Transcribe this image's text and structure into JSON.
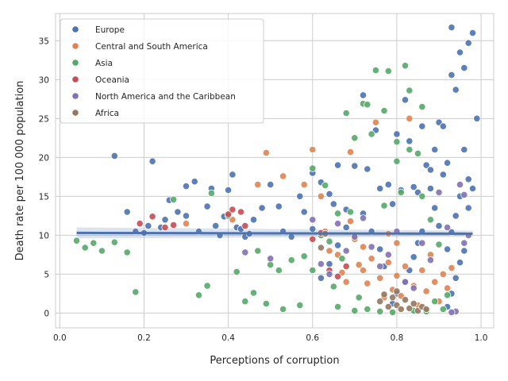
{
  "chart_data": {
    "type": "scatter",
    "xlabel": "Perceptions of corruption",
    "ylabel": "Death rate per 100 000 population",
    "xlim": [
      -0.01,
      1.03
    ],
    "ylim": [
      -1.9,
      38.5
    ],
    "xticks": [
      0.0,
      0.2,
      0.4,
      0.6,
      0.8,
      1.0
    ],
    "xtick_labels": [
      "0.0",
      "0.2",
      "0.4",
      "0.6",
      "0.8",
      "1.0"
    ],
    "yticks": [
      0,
      5,
      10,
      15,
      20,
      25,
      30,
      35
    ],
    "ytick_labels": [
      "0",
      "5",
      "10",
      "15",
      "20",
      "25",
      "30",
      "35"
    ],
    "grid": true,
    "legend_position": "top-left",
    "regression": {
      "x_range": [
        0.04,
        0.98
      ],
      "y_start": 10.3,
      "y_end": 10.2,
      "ci_start": [
        9.6,
        11.0
      ],
      "ci_end": [
        9.8,
        10.6
      ],
      "color": "#4c72b0"
    },
    "series": [
      {
        "name": "Europe",
        "color": "#4c72b0",
        "points": [
          [
            0.13,
            20.2
          ],
          [
            0.22,
            19.5
          ],
          [
            0.16,
            13.0
          ],
          [
            0.18,
            10.5
          ],
          [
            0.2,
            10.3
          ],
          [
            0.21,
            11.2
          ],
          [
            0.24,
            11.0
          ],
          [
            0.25,
            12.0
          ],
          [
            0.26,
            14.5
          ],
          [
            0.28,
            13.0
          ],
          [
            0.3,
            12.5
          ],
          [
            0.3,
            16.3
          ],
          [
            0.32,
            16.9
          ],
          [
            0.33,
            10.5
          ],
          [
            0.35,
            13.7
          ],
          [
            0.36,
            16.0
          ],
          [
            0.37,
            11.2
          ],
          [
            0.38,
            10.0
          ],
          [
            0.39,
            12.4
          ],
          [
            0.4,
            15.8
          ],
          [
            0.41,
            17.8
          ],
          [
            0.42,
            11.0
          ],
          [
            0.43,
            10.8
          ],
          [
            0.44,
            9.8
          ],
          [
            0.45,
            10.2
          ],
          [
            0.46,
            12.0
          ],
          [
            0.48,
            13.5
          ],
          [
            0.5,
            16.5
          ],
          [
            0.52,
            13.7
          ],
          [
            0.53,
            10.5
          ],
          [
            0.55,
            9.8
          ],
          [
            0.57,
            15.0
          ],
          [
            0.58,
            13.0
          ],
          [
            0.6,
            18.0
          ],
          [
            0.62,
            16.8
          ],
          [
            0.64,
            15.3
          ],
          [
            0.65,
            14.0
          ],
          [
            0.66,
            19.0
          ],
          [
            0.68,
            13.3
          ],
          [
            0.7,
            18.9
          ],
          [
            0.72,
            28.0
          ],
          [
            0.73,
            18.5
          ],
          [
            0.75,
            23.5
          ],
          [
            0.76,
            16.0
          ],
          [
            0.78,
            16.5
          ],
          [
            0.79,
            14.0
          ],
          [
            0.8,
            23.0
          ],
          [
            0.81,
            15.8
          ],
          [
            0.82,
            27.4
          ],
          [
            0.83,
            22.1
          ],
          [
            0.84,
            16.2
          ],
          [
            0.85,
            15.5
          ],
          [
            0.86,
            24.0
          ],
          [
            0.87,
            19.0
          ],
          [
            0.88,
            18.4
          ],
          [
            0.89,
            21.0
          ],
          [
            0.9,
            24.5
          ],
          [
            0.91,
            24.0
          ],
          [
            0.92,
            19.3
          ],
          [
            0.93,
            30.6
          ],
          [
            0.93,
            36.7
          ],
          [
            0.94,
            28.7
          ],
          [
            0.95,
            33.5
          ],
          [
            0.96,
            31.5
          ],
          [
            0.97,
            34.7
          ],
          [
            0.98,
            36.0
          ],
          [
            0.96,
            21.0
          ],
          [
            0.97,
            17.2
          ],
          [
            0.95,
            15.0
          ],
          [
            0.94,
            12.5
          ],
          [
            0.93,
            10.4
          ],
          [
            0.92,
            8.2
          ],
          [
            0.9,
            11.2
          ],
          [
            0.89,
            13.5
          ],
          [
            0.88,
            16.0
          ],
          [
            0.91,
            17.8
          ],
          [
            0.86,
            10.5
          ],
          [
            0.85,
            9.0
          ],
          [
            0.84,
            7.2
          ],
          [
            0.83,
            5.5
          ],
          [
            0.82,
            4.0
          ],
          [
            0.8,
            2.5
          ],
          [
            0.79,
            1.2
          ],
          [
            0.77,
            6.0
          ],
          [
            0.76,
            8.2
          ],
          [
            0.74,
            10.5
          ],
          [
            0.72,
            12.8
          ],
          [
            0.7,
            9.8
          ],
          [
            0.68,
            11.0
          ],
          [
            0.66,
            8.7
          ],
          [
            0.64,
            6.3
          ],
          [
            0.62,
            4.5
          ],
          [
            0.6,
            10.8
          ],
          [
            0.99,
            25.0
          ],
          [
            0.98,
            16.0
          ],
          [
            0.97,
            13.5
          ],
          [
            0.96,
            8.0
          ],
          [
            0.95,
            6.5
          ],
          [
            0.94,
            4.5
          ],
          [
            0.93,
            2.5
          ],
          [
            0.92,
            0.8
          ]
        ]
      },
      {
        "name": "Central and South America",
        "color": "#dd8452",
        "points": [
          [
            0.3,
            11.5
          ],
          [
            0.41,
            12.0
          ],
          [
            0.47,
            16.5
          ],
          [
            0.49,
            20.6
          ],
          [
            0.53,
            17.6
          ],
          [
            0.58,
            16.5
          ],
          [
            0.6,
            21.0
          ],
          [
            0.62,
            15.0
          ],
          [
            0.63,
            10.5
          ],
          [
            0.64,
            8.0
          ],
          [
            0.66,
            7.5
          ],
          [
            0.67,
            5.2
          ],
          [
            0.68,
            4.0
          ],
          [
            0.69,
            11.8
          ],
          [
            0.7,
            9.5
          ],
          [
            0.71,
            6.2
          ],
          [
            0.72,
            5.5
          ],
          [
            0.73,
            3.8
          ],
          [
            0.74,
            7.0
          ],
          [
            0.75,
            24.5
          ],
          [
            0.76,
            4.5
          ],
          [
            0.77,
            2.0
          ],
          [
            0.78,
            6.5
          ],
          [
            0.79,
            3.0
          ],
          [
            0.8,
            4.8
          ],
          [
            0.81,
            2.2
          ],
          [
            0.82,
            6.0
          ],
          [
            0.83,
            25.0
          ],
          [
            0.84,
            3.5
          ],
          [
            0.85,
            1.0
          ],
          [
            0.86,
            5.5
          ],
          [
            0.87,
            2.8
          ],
          [
            0.88,
            7.5
          ],
          [
            0.89,
            4.0
          ],
          [
            0.9,
            1.5
          ],
          [
            0.91,
            5.0
          ],
          [
            0.92,
            3.2
          ],
          [
            0.93,
            5.8
          ],
          [
            0.72,
            8.5
          ],
          [
            0.69,
            20.7
          ],
          [
            0.8,
            9.0
          ],
          [
            0.78,
            10.2
          ]
        ]
      },
      {
        "name": "Asia",
        "color": "#55a868",
        "points": [
          [
            0.04,
            9.3
          ],
          [
            0.06,
            8.4
          ],
          [
            0.08,
            9.0
          ],
          [
            0.1,
            8.0
          ],
          [
            0.13,
            9.1
          ],
          [
            0.16,
            7.8
          ],
          [
            0.18,
            2.7
          ],
          [
            0.27,
            14.6
          ],
          [
            0.33,
            2.3
          ],
          [
            0.35,
            3.5
          ],
          [
            0.36,
            15.4
          ],
          [
            0.4,
            12.5
          ],
          [
            0.42,
            5.3
          ],
          [
            0.44,
            1.5
          ],
          [
            0.46,
            2.6
          ],
          [
            0.47,
            8.0
          ],
          [
            0.49,
            1.2
          ],
          [
            0.5,
            6.2
          ],
          [
            0.52,
            5.5
          ],
          [
            0.53,
            0.5
          ],
          [
            0.55,
            6.8
          ],
          [
            0.57,
            1.0
          ],
          [
            0.58,
            7.3
          ],
          [
            0.6,
            5.5
          ],
          [
            0.62,
            10.0
          ],
          [
            0.64,
            9.2
          ],
          [
            0.65,
            3.4
          ],
          [
            0.66,
            0.8
          ],
          [
            0.67,
            7.0
          ],
          [
            0.68,
            25.7
          ],
          [
            0.69,
            13.0
          ],
          [
            0.7,
            0.3
          ],
          [
            0.71,
            2.0
          ],
          [
            0.72,
            26.9
          ],
          [
            0.73,
            0.5
          ],
          [
            0.74,
            23.0
          ],
          [
            0.75,
            31.2
          ],
          [
            0.76,
            0.2
          ],
          [
            0.77,
            13.8
          ],
          [
            0.78,
            31.1
          ],
          [
            0.79,
            0.1
          ],
          [
            0.8,
            22.0
          ],
          [
            0.81,
            15.5
          ],
          [
            0.82,
            31.8
          ],
          [
            0.83,
            28.6
          ],
          [
            0.84,
            0.3
          ],
          [
            0.85,
            20.5
          ],
          [
            0.86,
            26.5
          ],
          [
            0.87,
            0.2
          ],
          [
            0.88,
            12.0
          ],
          [
            0.89,
            1.5
          ],
          [
            0.9,
            8.8
          ],
          [
            0.91,
            0.5
          ],
          [
            0.92,
            2.3
          ],
          [
            0.6,
            18.6
          ],
          [
            0.63,
            16.4
          ],
          [
            0.66,
            12.8
          ],
          [
            0.7,
            22.5
          ],
          [
            0.73,
            26.8
          ],
          [
            0.77,
            26.0
          ],
          [
            0.8,
            19.5
          ],
          [
            0.83,
            21.0
          ],
          [
            0.86,
            15.0
          ]
        ]
      },
      {
        "name": "Oceania",
        "color": "#c44e52",
        "points": [
          [
            0.19,
            11.5
          ],
          [
            0.22,
            12.4
          ],
          [
            0.25,
            11.0
          ],
          [
            0.27,
            11.3
          ],
          [
            0.4,
            12.7
          ],
          [
            0.41,
            13.3
          ],
          [
            0.43,
            13.0
          ],
          [
            0.44,
            11.2
          ],
          [
            0.6,
            9.5
          ],
          [
            0.62,
            10.3
          ],
          [
            0.64,
            5.5
          ],
          [
            0.66,
            4.7
          ],
          [
            0.68,
            6.0
          ]
        ]
      },
      {
        "name": "North America and the Caribbean",
        "color": "#8172b3",
        "points": [
          [
            0.44,
            7.8
          ],
          [
            0.5,
            7.0
          ],
          [
            0.6,
            12.0
          ],
          [
            0.62,
            6.3
          ],
          [
            0.64,
            5.0
          ],
          [
            0.66,
            11.5
          ],
          [
            0.68,
            8.0
          ],
          [
            0.7,
            9.8
          ],
          [
            0.72,
            12.2
          ],
          [
            0.74,
            8.5
          ],
          [
            0.76,
            6.0
          ],
          [
            0.78,
            7.5
          ],
          [
            0.8,
            10.5
          ],
          [
            0.82,
            4.0
          ],
          [
            0.84,
            3.2
          ],
          [
            0.86,
            9.0
          ],
          [
            0.88,
            6.8
          ],
          [
            0.9,
            15.5
          ],
          [
            0.92,
            11.0
          ],
          [
            0.94,
            0.2
          ],
          [
            0.95,
            16.5
          ],
          [
            0.96,
            15.2
          ],
          [
            0.97,
            10.0
          ],
          [
            0.96,
            9.0
          ],
          [
            0.93,
            0.1
          ]
        ]
      },
      {
        "name": "Africa",
        "color": "#937860",
        "points": [
          [
            0.62,
            8.4
          ],
          [
            0.63,
            10.2
          ],
          [
            0.76,
            1.5
          ],
          [
            0.78,
            0.8
          ],
          [
            0.79,
            2.0
          ],
          [
            0.8,
            1.0
          ],
          [
            0.81,
            0.5
          ],
          [
            0.82,
            1.7
          ],
          [
            0.83,
            0.6
          ],
          [
            0.84,
            1.2
          ],
          [
            0.85,
            0.3
          ],
          [
            0.86,
            0.8
          ],
          [
            0.87,
            0.5
          ],
          [
            0.77,
            2.4
          ],
          [
            0.8,
            2.8
          ]
        ]
      }
    ]
  }
}
